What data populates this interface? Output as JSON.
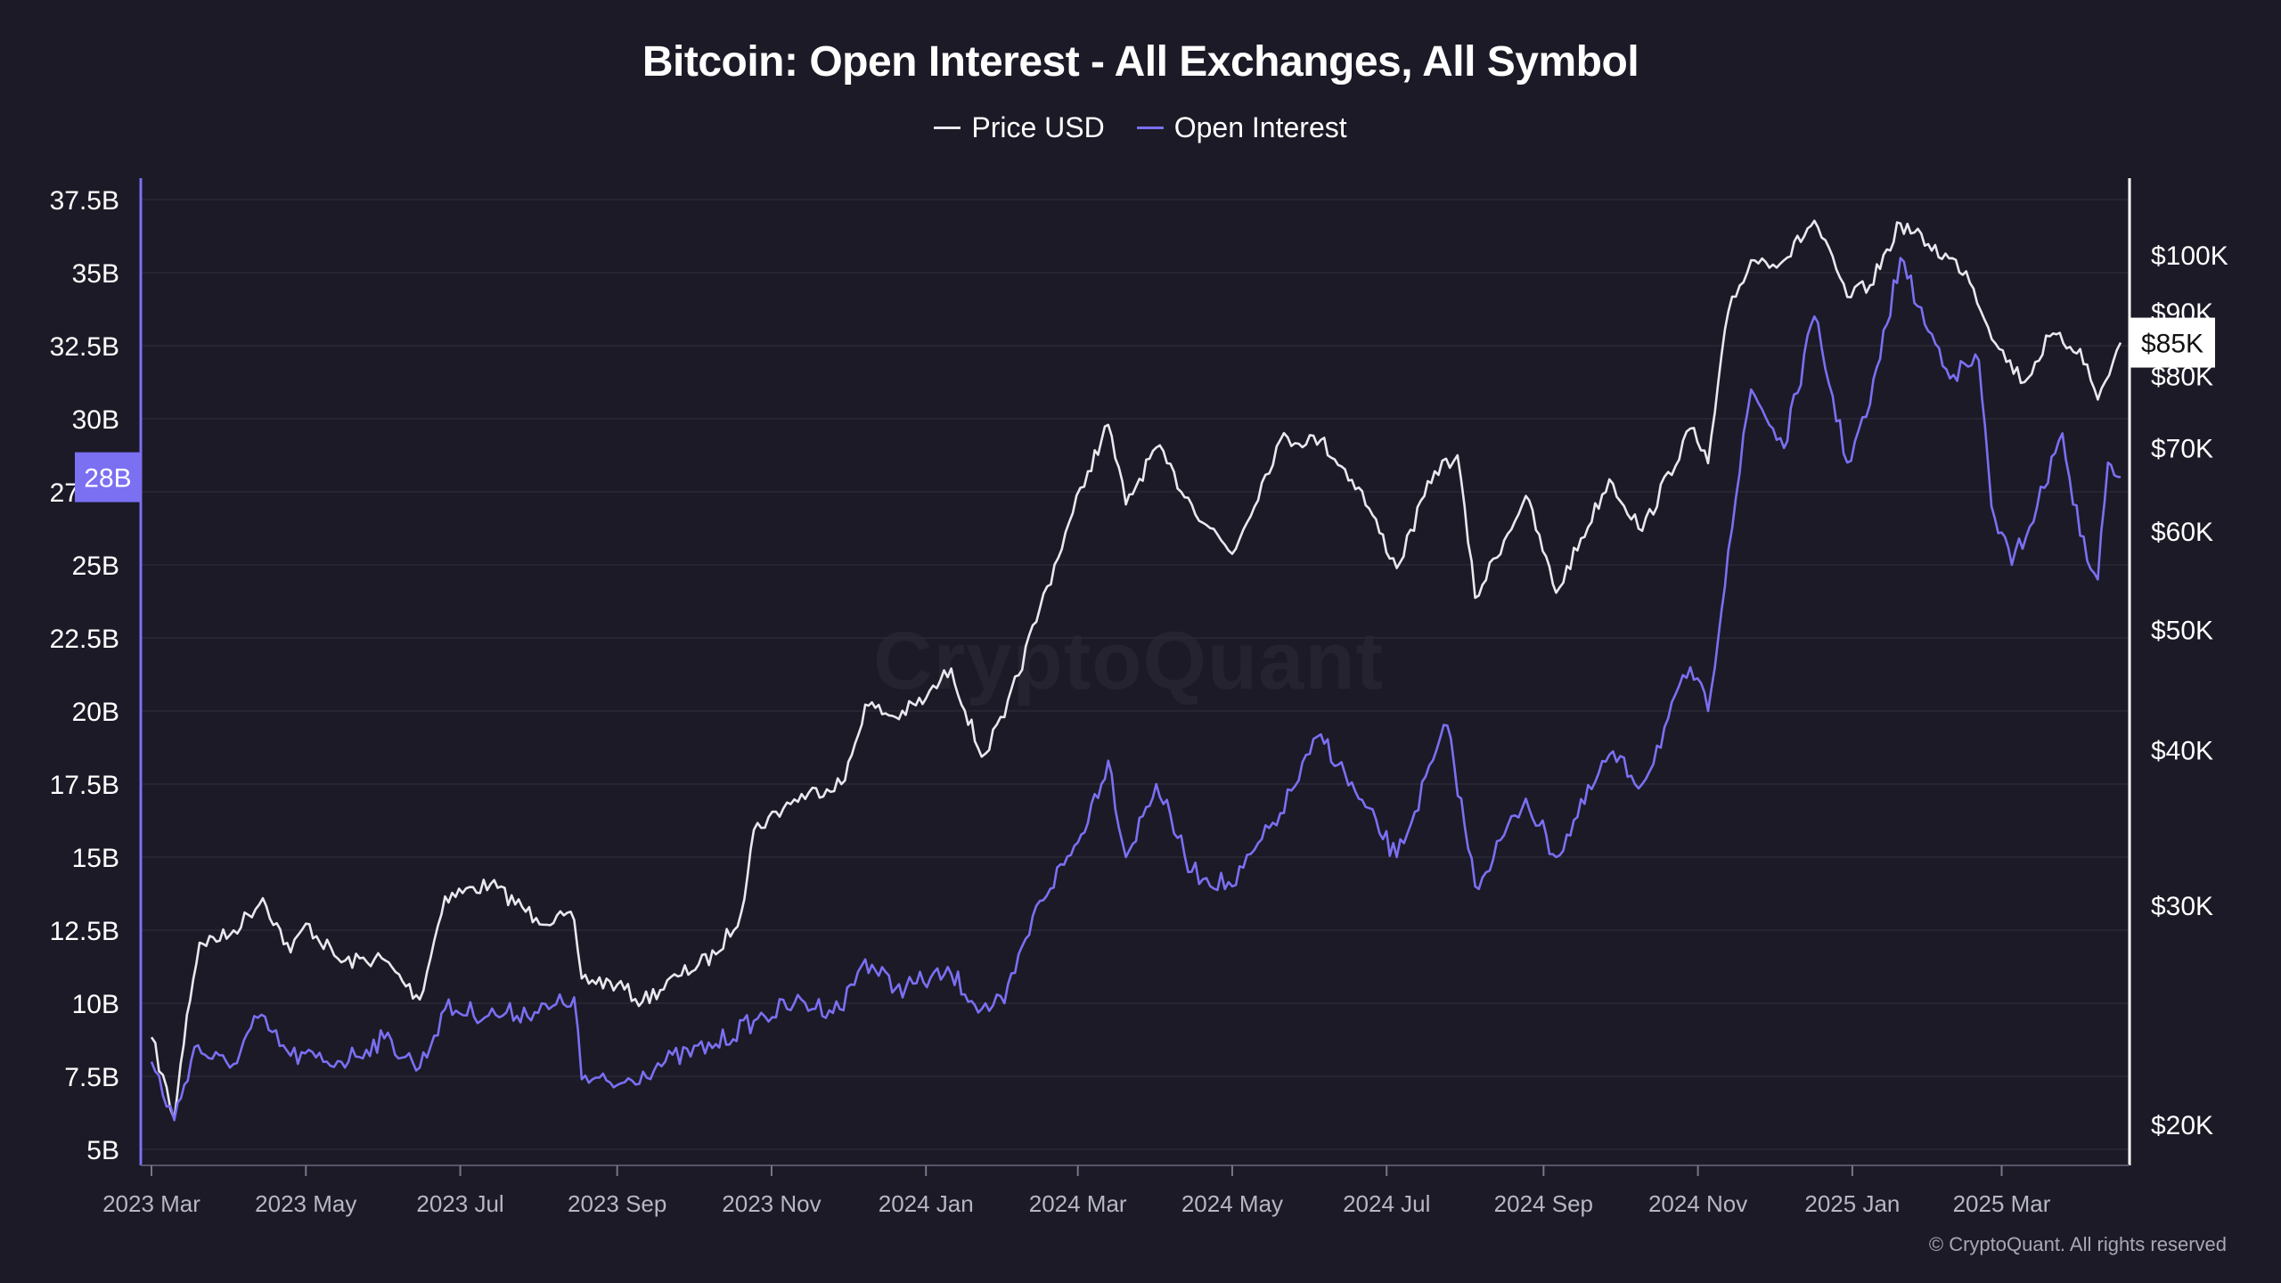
{
  "title": "Bitcoin: Open Interest - All Exchanges, All Symbol",
  "watermark": "CryptoQuant",
  "copyright": "© CryptoQuant. All rights reserved",
  "legend": [
    {
      "label": "Price USD",
      "color": "#e8e8ee"
    },
    {
      "label": "Open Interest",
      "color": "#7b6ff2"
    }
  ],
  "current_badges": {
    "left": "28B",
    "right": "$85K"
  },
  "colors": {
    "background": "#1b1a26",
    "grid": "#2a2937",
    "price": "#e8e8ee",
    "open_interest": "#7b6ff2",
    "axis": "#ffffff"
  },
  "chart_data": {
    "type": "line",
    "title": "Bitcoin: Open Interest - All Exchanges, All Symbol",
    "x_ticks": [
      "2023 Mar",
      "2023 May",
      "2023 Jul",
      "2023 Sep",
      "2023 Nov",
      "2024 Jan",
      "2024 Mar",
      "2024 May",
      "2024 Jul",
      "2024 Sep",
      "2024 Nov",
      "2025 Jan",
      "2025 Mar"
    ],
    "x_range": [
      "2023-03-01",
      "2025-04-17"
    ],
    "y_left": {
      "label": "",
      "ticks": [
        "5B",
        "7.5B",
        "10B",
        "12.5B",
        "15B",
        "17.5B",
        "20B",
        "22.5B",
        "25B",
        "27.5B",
        "30B",
        "32.5B",
        "35B",
        "37.5B"
      ],
      "range": [
        5,
        37.5
      ],
      "unit": "B"
    },
    "y_right": {
      "label": "",
      "scale": "log",
      "ticks": [
        "$20K",
        "$30K",
        "$40K",
        "$50K",
        "$60K",
        "$70K",
        "$80K",
        "$90K",
        "$100K"
      ],
      "tick_values": [
        20000,
        30000,
        40000,
        50000,
        60000,
        70000,
        80000,
        90000,
        100000
      ]
    },
    "grid": true,
    "legend_position": "top-center",
    "series": [
      {
        "name": "Price USD",
        "axis": "right",
        "points": [
          [
            "2023-03-01",
            23500
          ],
          [
            "2023-03-10",
            20200
          ],
          [
            "2023-03-15",
            24500
          ],
          [
            "2023-03-20",
            28000
          ],
          [
            "2023-04-01",
            28400
          ],
          [
            "2023-04-14",
            30400
          ],
          [
            "2023-04-25",
            27500
          ],
          [
            "2023-05-01",
            29000
          ],
          [
            "2023-05-15",
            27000
          ],
          [
            "2023-05-31",
            27200
          ],
          [
            "2023-06-15",
            25200
          ],
          [
            "2023-06-25",
            30500
          ],
          [
            "2023-07-13",
            31200
          ],
          [
            "2023-07-31",
            29300
          ],
          [
            "2023-08-15",
            29200
          ],
          [
            "2023-08-18",
            26200
          ],
          [
            "2023-09-01",
            25900
          ],
          [
            "2023-09-11",
            25100
          ],
          [
            "2023-09-25",
            26300
          ],
          [
            "2023-10-10",
            27400
          ],
          [
            "2023-10-20",
            29600
          ],
          [
            "2023-10-25",
            34500
          ],
          [
            "2023-11-10",
            36500
          ],
          [
            "2023-11-30",
            37800
          ],
          [
            "2023-12-08",
            43500
          ],
          [
            "2023-12-20",
            42500
          ],
          [
            "2024-01-01",
            44000
          ],
          [
            "2024-01-11",
            46500
          ],
          [
            "2024-01-23",
            39500
          ],
          [
            "2024-02-01",
            42500
          ],
          [
            "2024-02-15",
            52000
          ],
          [
            "2024-02-28",
            62000
          ],
          [
            "2024-03-05",
            67000
          ],
          [
            "2024-03-13",
            73000
          ],
          [
            "2024-03-20",
            63000
          ],
          [
            "2024-04-01",
            70000
          ],
          [
            "2024-04-15",
            63000
          ],
          [
            "2024-05-01",
            57500
          ],
          [
            "2024-05-20",
            71000
          ],
          [
            "2024-06-05",
            71000
          ],
          [
            "2024-06-20",
            65000
          ],
          [
            "2024-07-05",
            56000
          ],
          [
            "2024-07-20",
            67000
          ],
          [
            "2024-07-29",
            69000
          ],
          [
            "2024-08-05",
            53000
          ],
          [
            "2024-08-25",
            64000
          ],
          [
            "2024-09-06",
            53500
          ],
          [
            "2024-09-27",
            66000
          ],
          [
            "2024-10-10",
            60000
          ],
          [
            "2024-10-29",
            72500
          ],
          [
            "2024-11-05",
            68000
          ],
          [
            "2024-11-13",
            90000
          ],
          [
            "2024-11-22",
            99000
          ],
          [
            "2024-12-05",
            99000
          ],
          [
            "2024-12-17",
            106500
          ],
          [
            "2024-12-30",
            92500
          ],
          [
            "2025-01-08",
            94500
          ],
          [
            "2025-01-20",
            106000
          ],
          [
            "2025-01-31",
            102000
          ],
          [
            "2025-02-15",
            97000
          ],
          [
            "2025-02-28",
            84000
          ],
          [
            "2025-03-10",
            79000
          ],
          [
            "2025-03-20",
            86000
          ],
          [
            "2025-04-01",
            84000
          ],
          [
            "2025-04-08",
            76500
          ],
          [
            "2025-04-17",
            85000
          ]
        ]
      },
      {
        "name": "Open Interest",
        "axis": "left",
        "points": [
          [
            "2023-03-01",
            8.0
          ],
          [
            "2023-03-10",
            6.0
          ],
          [
            "2023-03-18",
            8.5
          ],
          [
            "2023-04-01",
            7.8
          ],
          [
            "2023-04-12",
            9.5
          ],
          [
            "2023-04-25",
            8.2
          ],
          [
            "2023-05-15",
            8.0
          ],
          [
            "2023-06-01",
            8.8
          ],
          [
            "2023-06-15",
            7.8
          ],
          [
            "2023-06-25",
            9.8
          ],
          [
            "2023-07-15",
            9.6
          ],
          [
            "2023-08-05",
            9.8
          ],
          [
            "2023-08-15",
            10.2
          ],
          [
            "2023-08-18",
            7.4
          ],
          [
            "2023-09-01",
            7.2
          ],
          [
            "2023-09-20",
            8.0
          ],
          [
            "2023-10-10",
            8.6
          ],
          [
            "2023-10-25",
            9.4
          ],
          [
            "2023-11-10",
            10.0
          ],
          [
            "2023-11-28",
            9.8
          ],
          [
            "2023-12-08",
            11.5
          ],
          [
            "2023-12-20",
            10.5
          ],
          [
            "2024-01-11",
            11.0
          ],
          [
            "2024-01-23",
            9.8
          ],
          [
            "2024-02-01",
            10.0
          ],
          [
            "2024-02-15",
            13.5
          ],
          [
            "2024-03-01",
            15.5
          ],
          [
            "2024-03-13",
            18.3
          ],
          [
            "2024-03-20",
            15.0
          ],
          [
            "2024-04-01",
            17.5
          ],
          [
            "2024-04-15",
            14.5
          ],
          [
            "2024-05-01",
            14.0
          ],
          [
            "2024-05-20",
            16.5
          ],
          [
            "2024-06-05",
            19.2
          ],
          [
            "2024-06-20",
            17.0
          ],
          [
            "2024-07-05",
            15.0
          ],
          [
            "2024-07-25",
            19.5
          ],
          [
            "2024-08-05",
            14.0
          ],
          [
            "2024-08-25",
            17.0
          ],
          [
            "2024-09-06",
            15.0
          ],
          [
            "2024-09-27",
            18.5
          ],
          [
            "2024-10-10",
            17.5
          ],
          [
            "2024-10-29",
            21.5
          ],
          [
            "2024-11-05",
            20.0
          ],
          [
            "2024-11-13",
            25.5
          ],
          [
            "2024-11-22",
            31.0
          ],
          [
            "2024-12-05",
            29.0
          ],
          [
            "2024-12-17",
            33.5
          ],
          [
            "2024-12-30",
            28.5
          ],
          [
            "2025-01-08",
            30.5
          ],
          [
            "2025-01-20",
            35.5
          ],
          [
            "2025-01-31",
            33.0
          ],
          [
            "2025-02-10",
            31.5
          ],
          [
            "2025-02-20",
            32.0
          ],
          [
            "2025-02-25",
            27.0
          ],
          [
            "2025-03-05",
            25.0
          ],
          [
            "2025-03-15",
            27.0
          ],
          [
            "2025-03-25",
            29.5
          ],
          [
            "2025-04-01",
            26.0
          ],
          [
            "2025-04-08",
            24.5
          ],
          [
            "2025-04-12",
            28.5
          ],
          [
            "2025-04-17",
            28.0
          ]
        ]
      }
    ]
  }
}
